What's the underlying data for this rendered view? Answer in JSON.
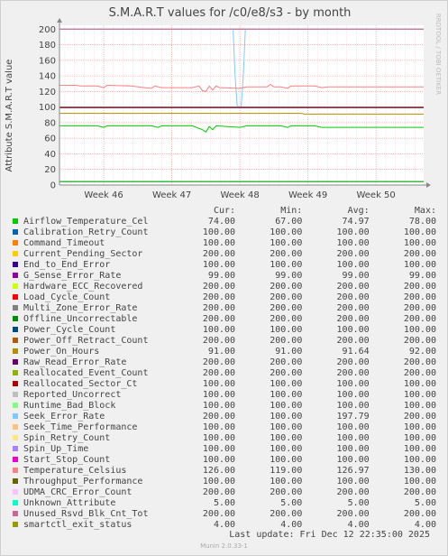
{
  "chart_data": {
    "type": "line",
    "title": "S.M.A.R.T values for /c0/e8/s3 - by month",
    "ylabel": "Attribute S.M.A.R.T value",
    "watermark": "RRDTOOL / TOBI OETIKER",
    "ylim": [
      0,
      205
    ],
    "yticks": [
      0,
      20,
      40,
      60,
      80,
      100,
      120,
      140,
      160,
      180,
      200
    ],
    "xlim": [
      45.35,
      50.7
    ],
    "xticks": [
      {
        "value": 46,
        "label": "Week 46"
      },
      {
        "value": 47,
        "label": "Week 47"
      },
      {
        "value": 48,
        "label": "Week 48"
      },
      {
        "value": 49,
        "label": "Week 49"
      },
      {
        "value": 50,
        "label": "Week 50"
      }
    ],
    "grid": true,
    "colors": {
      "plot_bg": "#ffffff",
      "grid_minor": "#f0c8c8",
      "grid_major": "#e8a0a0",
      "axis": "#888888"
    },
    "series": [
      {
        "name": "Airflow_Temperature_Cel",
        "color": "#00cc00",
        "cur": "74.00",
        "min": "67.00",
        "avg": "74.97",
        "max": "78.00",
        "points": [
          [
            45.35,
            76
          ],
          [
            45.9,
            76
          ],
          [
            46.0,
            74
          ],
          [
            46.05,
            76
          ],
          [
            46.7,
            76
          ],
          [
            46.8,
            74
          ],
          [
            46.85,
            76
          ],
          [
            47.3,
            76
          ],
          [
            47.45,
            71
          ],
          [
            47.5,
            68
          ],
          [
            47.55,
            75
          ],
          [
            47.6,
            71
          ],
          [
            47.65,
            76
          ],
          [
            48.0,
            74
          ],
          [
            48.1,
            76
          ],
          [
            48.6,
            76
          ],
          [
            48.7,
            74
          ],
          [
            48.75,
            76
          ],
          [
            49.1,
            76
          ],
          [
            49.2,
            74
          ],
          [
            49.3,
            74
          ],
          [
            50.0,
            74
          ],
          [
            50.7,
            74
          ]
        ]
      },
      {
        "name": "Calibration_Retry_Count",
        "color": "#0066b3",
        "cur": "100.00",
        "min": "100.00",
        "avg": "100.00",
        "max": "100.00",
        "points": [
          [
            45.35,
            100
          ],
          [
            50.7,
            100
          ]
        ]
      },
      {
        "name": "Command_Timeout",
        "color": "#ff8000",
        "cur": "100.00",
        "min": "100.00",
        "avg": "100.00",
        "max": "100.00",
        "points": [
          [
            45.35,
            100
          ],
          [
            50.7,
            100
          ]
        ]
      },
      {
        "name": "Current_Pending_Sector",
        "color": "#ffcc00",
        "cur": "200.00",
        "min": "200.00",
        "avg": "200.00",
        "max": "200.00",
        "points": [
          [
            45.35,
            200
          ],
          [
            50.7,
            200
          ]
        ]
      },
      {
        "name": "End_to_End_Error",
        "color": "#330099",
        "cur": "100.00",
        "min": "100.00",
        "avg": "100.00",
        "max": "100.00",
        "points": [
          [
            45.35,
            100
          ],
          [
            50.7,
            100
          ]
        ]
      },
      {
        "name": "G_Sense_Error_Rate",
        "color": "#990099",
        "cur": "99.00",
        "min": "99.00",
        "avg": "99.00",
        "max": "99.00",
        "points": [
          [
            45.35,
            99
          ],
          [
            50.7,
            99
          ]
        ]
      },
      {
        "name": "Hardware_ECC_Recovered",
        "color": "#ccff00",
        "cur": "200.00",
        "min": "200.00",
        "avg": "200.00",
        "max": "200.00",
        "points": [
          [
            45.35,
            200
          ],
          [
            50.7,
            200
          ]
        ]
      },
      {
        "name": "Load_Cycle_Count",
        "color": "#ff0000",
        "cur": "200.00",
        "min": "200.00",
        "avg": "200.00",
        "max": "200.00",
        "points": [
          [
            45.35,
            200
          ],
          [
            50.7,
            200
          ]
        ]
      },
      {
        "name": "Multi_Zone_Error_Rate",
        "color": "#808080",
        "cur": "200.00",
        "min": "200.00",
        "avg": "200.00",
        "max": "200.00",
        "points": [
          [
            45.35,
            200
          ],
          [
            50.7,
            200
          ]
        ]
      },
      {
        "name": "Offline_Uncorrectable",
        "color": "#008f00",
        "cur": "200.00",
        "min": "200.00",
        "avg": "200.00",
        "max": "200.00",
        "points": [
          [
            45.35,
            200
          ],
          [
            50.7,
            200
          ]
        ]
      },
      {
        "name": "Power_Cycle_Count",
        "color": "#00487d",
        "cur": "100.00",
        "min": "100.00",
        "avg": "100.00",
        "max": "100.00",
        "points": [
          [
            45.35,
            100
          ],
          [
            50.7,
            100
          ]
        ]
      },
      {
        "name": "Power_Off_Retract_Count",
        "color": "#b35a00",
        "cur": "200.00",
        "min": "200.00",
        "avg": "200.00",
        "max": "200.00",
        "points": [
          [
            45.35,
            200
          ],
          [
            50.7,
            200
          ]
        ]
      },
      {
        "name": "Power_On_Hours",
        "color": "#b38f00",
        "cur": "91.00",
        "min": "91.00",
        "avg": "91.64",
        "max": "92.00",
        "points": [
          [
            45.35,
            92
          ],
          [
            48.9,
            92
          ],
          [
            48.95,
            91
          ],
          [
            50.7,
            91
          ]
        ]
      },
      {
        "name": "Raw_Read_Error_Rate",
        "color": "#6b006b",
        "cur": "200.00",
        "min": "200.00",
        "avg": "200.00",
        "max": "200.00",
        "points": [
          [
            45.35,
            200
          ],
          [
            50.7,
            200
          ]
        ]
      },
      {
        "name": "Reallocated_Event_Count",
        "color": "#8fb300",
        "cur": "200.00",
        "min": "200.00",
        "avg": "200.00",
        "max": "200.00",
        "points": [
          [
            45.35,
            200
          ],
          [
            50.7,
            200
          ]
        ]
      },
      {
        "name": "Reallocated_Sector_Ct",
        "color": "#b30000",
        "cur": "100.00",
        "min": "100.00",
        "avg": "100.00",
        "max": "100.00",
        "points": [
          [
            45.35,
            100
          ],
          [
            50.7,
            100
          ]
        ]
      },
      {
        "name": "Reported_Uncorrect",
        "color": "#bebebe",
        "cur": "100.00",
        "min": "100.00",
        "avg": "100.00",
        "max": "100.00",
        "points": [
          [
            45.35,
            100
          ],
          [
            50.7,
            100
          ]
        ]
      },
      {
        "name": "Runtime_Bad_Block",
        "color": "#80ff80",
        "cur": "100.00",
        "min": "100.00",
        "avg": "100.00",
        "max": "100.00",
        "points": [
          [
            45.35,
            100
          ],
          [
            50.7,
            100
          ]
        ]
      },
      {
        "name": "Seek_Error_Rate",
        "color": "#80c9ff",
        "cur": "200.00",
        "min": "100.00",
        "avg": "197.79",
        "max": "200.00",
        "points": [
          [
            45.35,
            200
          ],
          [
            47.9,
            200
          ],
          [
            47.93,
            140
          ],
          [
            47.96,
            102
          ],
          [
            47.99,
            100
          ],
          [
            48.02,
            101
          ],
          [
            48.05,
            140
          ],
          [
            48.08,
            200
          ],
          [
            50.7,
            200
          ]
        ]
      },
      {
        "name": "Seek_Time_Performance",
        "color": "#ffc080",
        "cur": "100.00",
        "min": "100.00",
        "avg": "100.00",
        "max": "100.00",
        "points": [
          [
            45.35,
            100
          ],
          [
            50.7,
            100
          ]
        ]
      },
      {
        "name": "Spin_Retry_Count",
        "color": "#ffe680",
        "cur": "100.00",
        "min": "100.00",
        "avg": "100.00",
        "max": "100.00",
        "points": [
          [
            45.35,
            100
          ],
          [
            50.7,
            100
          ]
        ]
      },
      {
        "name": "Spin_Up_Time",
        "color": "#aa80ff",
        "cur": "100.00",
        "min": "100.00",
        "avg": "100.00",
        "max": "100.00",
        "points": [
          [
            45.35,
            100
          ],
          [
            50.7,
            100
          ]
        ]
      },
      {
        "name": "Start_Stop_Count",
        "color": "#ee00cc",
        "cur": "100.00",
        "min": "100.00",
        "avg": "100.00",
        "max": "100.00",
        "points": [
          [
            45.35,
            100
          ],
          [
            50.7,
            100
          ]
        ]
      },
      {
        "name": "Temperature_Celsius",
        "color": "#ff8080",
        "cur": "126.00",
        "min": "119.00",
        "avg": "126.97",
        "max": "130.00",
        "points": [
          [
            45.35,
            128
          ],
          [
            45.6,
            128
          ],
          [
            45.65,
            127
          ],
          [
            45.9,
            127
          ],
          [
            46.0,
            125
          ],
          [
            46.05,
            128
          ],
          [
            46.4,
            127
          ],
          [
            46.6,
            125
          ],
          [
            46.7,
            124
          ],
          [
            46.75,
            127
          ],
          [
            46.85,
            125
          ],
          [
            47.3,
            125
          ],
          [
            47.4,
            127
          ],
          [
            47.45,
            121
          ],
          [
            47.5,
            120
          ],
          [
            47.55,
            127
          ],
          [
            47.6,
            122
          ],
          [
            47.65,
            127
          ],
          [
            47.7,
            125
          ],
          [
            48.0,
            124
          ],
          [
            48.1,
            126
          ],
          [
            48.4,
            126
          ],
          [
            48.45,
            129
          ],
          [
            48.5,
            126
          ],
          [
            48.6,
            126
          ],
          [
            48.7,
            124
          ],
          [
            48.75,
            127
          ],
          [
            49.1,
            127
          ],
          [
            49.2,
            125
          ],
          [
            49.3,
            126
          ],
          [
            50.0,
            126
          ],
          [
            50.7,
            126
          ]
        ]
      },
      {
        "name": "Throughput_Performance",
        "color": "#666600",
        "cur": "100.00",
        "min": "100.00",
        "avg": "100.00",
        "max": "100.00",
        "points": [
          [
            45.35,
            100
          ],
          [
            50.7,
            100
          ]
        ]
      },
      {
        "name": "UDMA_CRC_Error_Count",
        "color": "#ffbfff",
        "cur": "200.00",
        "min": "200.00",
        "avg": "200.00",
        "max": "200.00",
        "points": [
          [
            45.35,
            200
          ],
          [
            50.7,
            200
          ]
        ]
      },
      {
        "name": "Unknown_Attribute",
        "color": "#00ffcc",
        "cur": "5.00",
        "min": "5.00",
        "avg": "5.00",
        "max": "5.00",
        "points": [
          [
            45.35,
            5
          ],
          [
            50.7,
            5
          ]
        ]
      },
      {
        "name": "Unused_Rsvd_Blk_Cnt_Tot",
        "color": "#cc6699",
        "cur": "200.00",
        "min": "200.00",
        "avg": "200.00",
        "max": "200.00",
        "points": [
          [
            45.35,
            200
          ],
          [
            50.7,
            200
          ]
        ]
      },
      {
        "name": "smartctl_exit_status",
        "color": "#999900",
        "cur": "4.00",
        "min": "4.00",
        "avg": "4.00",
        "max": "4.00",
        "points": [
          [
            45.35,
            4
          ],
          [
            50.7,
            4
          ]
        ]
      }
    ]
  },
  "legend": {
    "col_cur": "Cur:",
    "col_min": "Min:",
    "col_avg": "Avg:",
    "col_max": "Max:"
  },
  "footer": {
    "last_update": "Last update:  Fri Dec 12 22:35:00 2025",
    "version": "Munin 2.0.33-1"
  }
}
